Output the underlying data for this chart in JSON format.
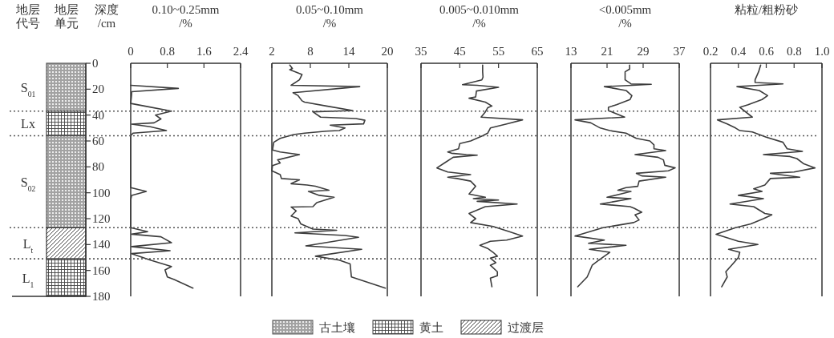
{
  "chart_data": [
    {
      "type": "bar",
      "stacked": true,
      "categories": [
        null
      ],
      "xlabel": "地层单元",
      "ylabel": "深度\n/cm",
      "ylim": [
        180,
        0
      ],
      "yticks": [
        0,
        20,
        40,
        60,
        80,
        100,
        120,
        140,
        160,
        180
      ],
      "tick_labels": "y",
      "legend": "bottom",
      "series": [
        {
          "name": "古土壤",
          "color": "#555555",
          "values": [
            37
          ]
        },
        {
          "name": "黄土",
          "color": "#444444",
          "values": [
            19
          ]
        },
        {
          "color": "#555555",
          "values": [
            71
          ]
        },
        {
          "name": "过渡层",
          "color": "#333333",
          "values": [
            24
          ]
        },
        {
          "color": "#444444",
          "values": [
            29
          ]
        }
      ],
      "annotations": [
        "地层代号",
        "S$_{01}$",
        "Lx",
        "S$_{02}$",
        "L$_{t}$",
        "L$_{1}$"
      ],
      "ref_lines": [
        {
          "axis": "y",
          "value": 37,
          "line_style": "dotted",
          "color": "#555555"
        },
        {
          "axis": "y",
          "value": 56,
          "line_style": "dotted",
          "color": "#555555"
        },
        {
          "axis": "y",
          "value": 127,
          "line_style": "dotted",
          "color": "#555555"
        },
        {
          "axis": "y",
          "value": 151,
          "line_style": "dotted",
          "color": "#555555"
        }
      ]
    },
    {
      "type": "line",
      "orientation": "horizontal",
      "xlabel": "0.10~0.25mm\n/%",
      "xlim": [
        0,
        2.4
      ],
      "xticks": [
        0,
        0.8,
        1.6,
        2.4
      ],
      "ylim": [
        180,
        0
      ],
      "tick_labels": "x",
      "series": [
        {
          "color": "#3c3c3c",
          "x": [
            17,
            19.4,
            22,
            24,
            31,
            33,
            37,
            40,
            43,
            46,
            47,
            49,
            52,
            54,
            56,
            96,
            99,
            102,
            105.6,
            127,
            130,
            132,
            134,
            138.6,
            141.6,
            144.7,
            147,
            152,
            157,
            159.6,
            165,
            167,
            173.6
          ],
          "values": [
            0,
            1.04,
            0.02,
            0.02,
            0,
            0.3,
            0.89,
            0.54,
            0.66,
            0.51,
            0.02,
            0.43,
            0.78,
            0.05,
            0,
            0,
            0.34,
            0.02,
            0,
            0,
            0.37,
            0.02,
            0.66,
            0.89,
            0.02,
            0.86,
            0.02,
            0.43,
            0.89,
            0.75,
            0.8,
            0.95,
            1.36
          ]
        }
      ],
      "ref_lines": [
        {
          "axis": "y",
          "value": 37,
          "line_style": "dotted",
          "color": "#555555"
        },
        {
          "axis": "y",
          "value": 56,
          "line_style": "dotted",
          "color": "#555555"
        },
        {
          "axis": "y",
          "value": 127,
          "line_style": "dotted",
          "color": "#555555"
        },
        {
          "axis": "y",
          "value": 151,
          "line_style": "dotted",
          "color": "#555555"
        }
      ]
    },
    {
      "type": "line",
      "orientation": "horizontal",
      "xlabel": "0.05~0.10mm\n/%",
      "xlim": [
        2,
        20
      ],
      "xticks": [
        2,
        8,
        14,
        20
      ],
      "ylim": [
        180,
        0
      ],
      "tick_labels": "x",
      "series": [
        {
          "color": "#3c3c3c",
          "x": [
            1.4,
            4,
            5,
            8.7,
            12.8,
            17,
            18,
            22.7,
            25,
            29,
            30,
            33,
            36.5,
            37.5,
            41.6,
            42.7,
            44,
            46.8,
            47.8,
            50,
            52,
            52.4,
            54,
            55,
            58,
            61,
            67,
            68.5,
            70.5,
            74.6,
            77,
            79,
            83,
            86,
            89,
            90,
            93,
            94,
            95,
            98,
            99,
            102,
            103.5,
            107.6,
            110.7,
            111,
            114,
            118,
            120,
            124,
            128,
            129,
            131,
            133,
            134.4,
            141,
            143.7,
            149,
            152,
            155,
            165,
            173.6
          ],
          "values": [
            4.8,
            5.2,
            4.8,
            6.7,
            6.3,
            5.0,
            15.7,
            5.3,
            6.1,
            6.7,
            7.1,
            10.5,
            14.6,
            8.4,
            9.6,
            15.1,
            16.5,
            16.3,
            11.1,
            13.4,
            12.5,
            10.5,
            7.1,
            5.4,
            3.3,
            2.3,
            2.1,
            3.3,
            6.3,
            2.9,
            3.3,
            2.1,
            2.0,
            3.3,
            3.5,
            6.3,
            5.0,
            7.5,
            8.8,
            10.9,
            7.7,
            9.4,
            11.7,
            9.0,
            8.4,
            5.0,
            5.8,
            5.0,
            6.1,
            6.5,
            8.4,
            12.1,
            5.6,
            13.4,
            15.5,
            7.3,
            16.0,
            8.8,
            12.5,
            14.2,
            14.4,
            19.7
          ]
        }
      ],
      "ref_lines": [
        {
          "axis": "y",
          "value": 37,
          "line_style": "dotted",
          "color": "#555555"
        },
        {
          "axis": "y",
          "value": 56,
          "line_style": "dotted",
          "color": "#555555"
        },
        {
          "axis": "y",
          "value": 127,
          "line_style": "dotted",
          "color": "#555555"
        },
        {
          "axis": "y",
          "value": 151,
          "line_style": "dotted",
          "color": "#555555"
        }
      ]
    },
    {
      "type": "line",
      "orientation": "horizontal",
      "xlabel": "0.005~0.010mm\n/%",
      "xlim": [
        35,
        65
      ],
      "xticks": [
        35,
        45,
        55,
        65
      ],
      "ylim": [
        180,
        0
      ],
      "tick_labels": "x",
      "series": [
        {
          "color": "#3c3c3c",
          "x": [
            1.4,
            6.6,
            10.7,
            12.8,
            16.5,
            17,
            18.6,
            21.4,
            26,
            27,
            30,
            33,
            34.4,
            37.5,
            41.6,
            43.7,
            46.8,
            50,
            54,
            56,
            60,
            62,
            66,
            68.5,
            69.5,
            70.5,
            71,
            72.6,
            76.7,
            80.8,
            84,
            86,
            88,
            89,
            91,
            95,
            101,
            103.5,
            104.5,
            105.6,
            106.6,
            108.7,
            110.7,
            116,
            120,
            123,
            126,
            130,
            133.4,
            136.5,
            137.5,
            140.6,
            143,
            146,
            149,
            150.5,
            154,
            156,
            161,
            164,
            166,
            172.6
          ],
          "values": [
            50.9,
            50.9,
            51,
            50.7,
            45.7,
            49.5,
            55,
            49.3,
            49.1,
            47.4,
            51.6,
            53.3,
            52.2,
            51.6,
            50.5,
            61.2,
            57.1,
            52.9,
            52.2,
            50.9,
            47.8,
            45,
            44.7,
            41.9,
            42.9,
            46.7,
            49.5,
            43.3,
            41.2,
            39.1,
            41.9,
            47.8,
            41.9,
            44.3,
            47.8,
            49.1,
            47.4,
            51.6,
            48.5,
            55,
            49.5,
            59.8,
            51.6,
            47.4,
            49.1,
            47.8,
            53.6,
            57.8,
            61.2,
            57.1,
            52.9,
            50.2,
            52.2,
            53.6,
            54.7,
            52.9,
            54.3,
            52.9,
            54.7,
            54.7,
            52.9,
            53.3
          ]
        }
      ],
      "ref_lines": [
        {
          "axis": "y",
          "value": 37,
          "line_style": "dotted",
          "color": "#555555"
        },
        {
          "axis": "y",
          "value": 56,
          "line_style": "dotted",
          "color": "#555555"
        },
        {
          "axis": "y",
          "value": 127,
          "line_style": "dotted",
          "color": "#555555"
        },
        {
          "axis": "y",
          "value": 151,
          "line_style": "dotted",
          "color": "#555555"
        }
      ]
    },
    {
      "type": "line",
      "orientation": "horizontal",
      "xlabel": "<0.005mm\n/%",
      "xlim": [
        13,
        37
      ],
      "xticks": [
        13,
        21,
        29,
        37
      ],
      "ylim": [
        180,
        0
      ],
      "tick_labels": "x",
      "series": [
        {
          "color": "#3c3c3c",
          "x": [
            1.4,
            4.5,
            6.6,
            12.8,
            15.9,
            16.2,
            17,
            18,
            21,
            25,
            28,
            32,
            34,
            36.5,
            41.6,
            43.7,
            46,
            50,
            52,
            54,
            58,
            60,
            63,
            66,
            67.4,
            70.5,
            72.6,
            74.6,
            78.8,
            80.8,
            83,
            85,
            87,
            88,
            91,
            95,
            96,
            98,
            99,
            101,
            103.5,
            104.5,
            107.6,
            108.7,
            110.7,
            112,
            115,
            117,
            121,
            123,
            127,
            133.4,
            136.5,
            139,
            140.6,
            143.7,
            146,
            149,
            152,
            156,
            161,
            165,
            172.6
          ],
          "values": [
            26.0,
            26.0,
            25.0,
            25.0,
            26.3,
            30.8,
            26.6,
            20.4,
            25.2,
            26.5,
            26.1,
            23.1,
            21.3,
            21.3,
            24.9,
            13.9,
            17.4,
            19.5,
            21.6,
            25.2,
            27.5,
            30.5,
            31.4,
            31.4,
            34,
            27.2,
            32.3,
            33.5,
            33.8,
            36.1,
            34.6,
            27.5,
            28.7,
            34.0,
            28.1,
            27.8,
            25.2,
            23.4,
            26.3,
            24,
            21,
            26.3,
            21.3,
            19.5,
            26.1,
            27,
            28.7,
            27.2,
            28.1,
            26.9,
            20.1,
            13.9,
            20.4,
            16.9,
            25.2,
            17.1,
            21.6,
            20.4,
            19.2,
            17.7,
            17.1,
            16.6,
            14.5
          ]
        }
      ],
      "ref_lines": [
        {
          "axis": "y",
          "value": 37,
          "line_style": "dotted",
          "color": "#555555"
        },
        {
          "axis": "y",
          "value": 56,
          "line_style": "dotted",
          "color": "#555555"
        },
        {
          "axis": "y",
          "value": 127,
          "line_style": "dotted",
          "color": "#555555"
        },
        {
          "axis": "y",
          "value": 151,
          "line_style": "dotted",
          "color": "#555555"
        }
      ]
    },
    {
      "type": "line",
      "orientation": "horizontal",
      "xlabel": "粘粒/粗粉砂",
      "xlim": [
        0.2,
        1
      ],
      "xticks": [
        0.2,
        0.4,
        0.6,
        0.8,
        {
          "value": 1,
          "label": "1.0"
        }
      ],
      "ylim": [
        180,
        0
      ],
      "tick_labels": "x",
      "series": [
        {
          "color": "#3c3c3c",
          "x": [
            1.4,
            6.6,
            12.8,
            14.8,
            15.9,
            17,
            18,
            21,
            25,
            28,
            32,
            34,
            41.6,
            43.7,
            46.8,
            50,
            52,
            53,
            57,
            61,
            66,
            68,
            70.5,
            72,
            73.6,
            77.7,
            80.8,
            84,
            85,
            88,
            89,
            94,
            97,
            99,
            102,
            104.5,
            108.7,
            110.7,
            116,
            117,
            120,
            124,
            127,
            132,
            137.5,
            140,
            143.7,
            146,
            150,
            155,
            161,
            165,
            172.6
          ],
          "values": [
            0.56,
            0.545,
            0.52,
            0.52,
            0.72,
            0.55,
            0.39,
            0.55,
            0.61,
            0.57,
            0.47,
            0.41,
            0.5,
            0.25,
            0.32,
            0.38,
            0.41,
            0.5,
            0.6,
            0.72,
            0.75,
            0.86,
            0.58,
            0.77,
            0.82,
            0.87,
            0.95,
            0.8,
            0.63,
            0.84,
            0.63,
            0.59,
            0.51,
            0.57,
            0.4,
            0.58,
            0.34,
            0.51,
            0.59,
            0.64,
            0.58,
            0.49,
            0.38,
            0.24,
            0.4,
            0.54,
            0.33,
            0.41,
            0.4,
            0.36,
            0.31,
            0.32,
            0.28
          ]
        }
      ],
      "ref_lines": [
        {
          "axis": "y",
          "value": 37,
          "line_style": "dotted",
          "color": "#555555"
        },
        {
          "axis": "y",
          "value": 56,
          "line_style": "dotted",
          "color": "#555555"
        },
        {
          "axis": "y",
          "value": 127,
          "line_style": "dotted",
          "color": "#555555"
        },
        {
          "axis": "y",
          "value": 151,
          "line_style": "dotted",
          "color": "#555555"
        }
      ]
    }
  ]
}
